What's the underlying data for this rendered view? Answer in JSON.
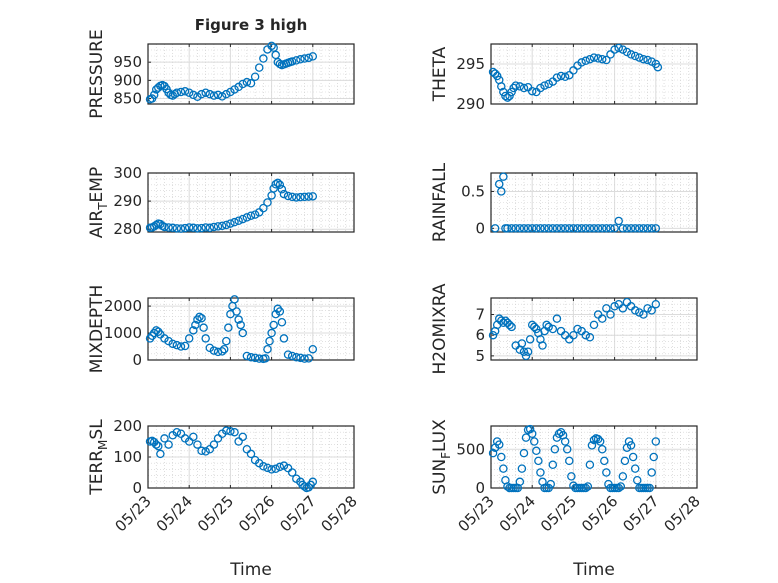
{
  "figure": {
    "title": "Figure 3 high",
    "x_ticks": [
      "05/23",
      "05/24",
      "05/25",
      "05/26",
      "05/27",
      "05/28"
    ],
    "x_label": "Time",
    "marker_color": "#0072BD",
    "axis_color": "#262626",
    "grid_color": "#dcdcdc"
  },
  "chart_data": [
    {
      "type": "scatter",
      "ylabel": "PRESSURE",
      "yticks": [
        "850",
        "900",
        "950"
      ],
      "ylim": [
        835,
        1000
      ],
      "xlim": [
        0,
        5
      ],
      "x": [
        0.05,
        0.1,
        0.15,
        0.2,
        0.25,
        0.3,
        0.35,
        0.4,
        0.45,
        0.5,
        0.55,
        0.6,
        0.65,
        0.7,
        0.8,
        0.9,
        1.0,
        1.1,
        1.2,
        1.3,
        1.4,
        1.5,
        1.6,
        1.7,
        1.8,
        1.9,
        2.0,
        2.1,
        2.2,
        2.3,
        2.4,
        2.5,
        2.6,
        2.7,
        2.8,
        2.9,
        3.0,
        3.05,
        3.1,
        3.15,
        3.2,
        3.25,
        3.3,
        3.35,
        3.4,
        3.45,
        3.5,
        3.6,
        3.7,
        3.8,
        3.9,
        4.0
      ],
      "y": [
        848,
        850,
        860,
        875,
        880,
        885,
        887,
        884,
        876,
        866,
        860,
        858,
        862,
        866,
        868,
        870,
        866,
        860,
        855,
        862,
        866,
        862,
        858,
        860,
        856,
        862,
        868,
        875,
        882,
        890,
        895,
        892,
        910,
        935,
        960,
        985,
        995,
        990,
        970,
        950,
        945,
        942,
        944,
        946,
        948,
        950,
        952,
        955,
        958,
        960,
        962,
        966
      ]
    },
    {
      "type": "scatter",
      "ylabel": "THETA",
      "yticks": [
        "290",
        "295"
      ],
      "ylim": [
        290,
        297.5
      ],
      "xlim": [
        0,
        5
      ],
      "x": [
        0.05,
        0.1,
        0.15,
        0.2,
        0.25,
        0.3,
        0.35,
        0.4,
        0.45,
        0.5,
        0.55,
        0.6,
        0.7,
        0.8,
        0.9,
        1.0,
        1.1,
        1.2,
        1.3,
        1.4,
        1.5,
        1.6,
        1.7,
        1.8,
        1.9,
        2.0,
        2.1,
        2.2,
        2.3,
        2.4,
        2.5,
        2.6,
        2.7,
        2.8,
        2.9,
        3.0,
        3.1,
        3.2,
        3.3,
        3.4,
        3.5,
        3.6,
        3.7,
        3.8,
        3.9,
        4.0,
        4.05
      ],
      "y": [
        294,
        293.8,
        293.5,
        293,
        292.2,
        291.5,
        291,
        290.8,
        291,
        291.5,
        292,
        292.3,
        292.2,
        292,
        292.1,
        291.6,
        291.5,
        292,
        292.3,
        292.5,
        292.8,
        293.3,
        293.5,
        293.4,
        293.6,
        294.2,
        294.8,
        295.2,
        295.4,
        295.6,
        295.8,
        295.7,
        295.6,
        295.5,
        296.2,
        296.8,
        297,
        296.8,
        296.5,
        296.2,
        296,
        295.8,
        295.6,
        295.5,
        295.3,
        295,
        294.6
      ]
    },
    {
      "type": "scatter",
      "ylabel": "AIR_TEMP",
      "yticks": [
        "280",
        "290",
        "300"
      ],
      "ylim": [
        279,
        300
      ],
      "xlim": [
        0,
        5
      ],
      "x": [
        0.05,
        0.1,
        0.15,
        0.2,
        0.25,
        0.3,
        0.35,
        0.4,
        0.5,
        0.6,
        0.7,
        0.8,
        0.9,
        1.0,
        1.1,
        1.2,
        1.3,
        1.4,
        1.5,
        1.6,
        1.7,
        1.8,
        1.9,
        2.0,
        2.1,
        2.2,
        2.3,
        2.4,
        2.5,
        2.6,
        2.7,
        2.8,
        2.9,
        3.0,
        3.05,
        3.1,
        3.15,
        3.2,
        3.25,
        3.3,
        3.4,
        3.5,
        3.6,
        3.7,
        3.8,
        3.9,
        4.0
      ],
      "y": [
        280.5,
        280.6,
        281,
        281.5,
        282,
        281.8,
        281.2,
        280.8,
        280.6,
        280.5,
        280.3,
        280.2,
        280.4,
        280.6,
        280.5,
        280.3,
        280.4,
        280.6,
        280.5,
        280.8,
        281,
        281.2,
        281.5,
        282,
        282.5,
        283,
        283.6,
        284.2,
        284.8,
        285.2,
        286,
        287.5,
        289.5,
        292,
        294.5,
        296,
        296.5,
        295.8,
        294.2,
        292.5,
        291.8,
        291.5,
        291.3,
        291.4,
        291.5,
        291.6,
        291.7
      ]
    },
    {
      "type": "scatter",
      "ylabel": "RAINFALL",
      "yticks": [
        "0",
        "0.5"
      ],
      "ylim": [
        -0.05,
        0.75
      ],
      "xlim": [
        0,
        5
      ],
      "x": [
        0.1,
        0.2,
        0.25,
        0.3,
        0.35,
        0.4,
        0.5,
        0.6,
        0.7,
        0.8,
        0.9,
        1.0,
        1.1,
        1.2,
        1.3,
        1.4,
        1.5,
        1.6,
        1.7,
        1.8,
        1.9,
        2.0,
        2.1,
        2.2,
        2.3,
        2.4,
        2.5,
        2.6,
        2.7,
        2.8,
        2.9,
        3.0,
        3.1,
        3.2,
        3.3,
        3.4,
        3.5,
        3.6,
        3.7,
        3.8,
        3.9,
        4.0
      ],
      "y": [
        0,
        0.6,
        0.5,
        0.7,
        0,
        0,
        0,
        0,
        0,
        0,
        0,
        0,
        0,
        0,
        0,
        0,
        0,
        0,
        0,
        0,
        0,
        0,
        0,
        0,
        0,
        0,
        0,
        0,
        0,
        0,
        0,
        0,
        0.1,
        0,
        0,
        0,
        0,
        0,
        0,
        0,
        0,
        0
      ]
    },
    {
      "type": "scatter",
      "ylabel": "MIXDEPTH",
      "yticks": [
        "0",
        "1000",
        "2000"
      ],
      "ylim": [
        0,
        2300
      ],
      "xlim": [
        0,
        5
      ],
      "x": [
        0.05,
        0.1,
        0.15,
        0.2,
        0.25,
        0.3,
        0.4,
        0.5,
        0.6,
        0.7,
        0.8,
        0.9,
        1.0,
        1.1,
        1.15,
        1.2,
        1.25,
        1.3,
        1.35,
        1.4,
        1.5,
        1.6,
        1.7,
        1.8,
        1.85,
        1.9,
        1.95,
        2.0,
        2.05,
        2.1,
        2.15,
        2.2,
        2.25,
        2.3,
        2.4,
        2.5,
        2.6,
        2.7,
        2.8,
        2.85,
        2.9,
        2.95,
        3.0,
        3.05,
        3.1,
        3.15,
        3.2,
        3.25,
        3.3,
        3.4,
        3.5,
        3.6,
        3.7,
        3.8,
        3.9,
        4.0
      ],
      "y": [
        800,
        900,
        1000,
        1100,
        1050,
        950,
        800,
        700,
        600,
        550,
        500,
        520,
        800,
        1100,
        1300,
        1500,
        1600,
        1550,
        1200,
        800,
        450,
        350,
        300,
        320,
        400,
        700,
        1200,
        1700,
        2000,
        2250,
        1800,
        1500,
        1300,
        1000,
        150,
        100,
        80,
        50,
        40,
        60,
        400,
        700,
        1000,
        1300,
        1700,
        1900,
        1800,
        1400,
        800,
        200,
        150,
        100,
        80,
        50,
        60,
        400
      ]
    },
    {
      "type": "scatter",
      "ylabel": "H2OMIXRA",
      "yticks": [
        "5",
        "6",
        "7"
      ],
      "ylim": [
        4.8,
        7.8
      ],
      "xlim": [
        0,
        5
      ],
      "x": [
        0.05,
        0.1,
        0.15,
        0.2,
        0.25,
        0.3,
        0.35,
        0.4,
        0.45,
        0.5,
        0.6,
        0.7,
        0.75,
        0.8,
        0.85,
        0.9,
        0.95,
        1.0,
        1.05,
        1.1,
        1.15,
        1.2,
        1.25,
        1.3,
        1.35,
        1.4,
        1.5,
        1.6,
        1.7,
        1.8,
        1.9,
        2.0,
        2.1,
        2.2,
        2.3,
        2.4,
        2.5,
        2.6,
        2.7,
        2.8,
        2.9,
        3.0,
        3.1,
        3.2,
        3.3,
        3.4,
        3.5,
        3.6,
        3.7,
        3.8,
        3.9,
        4.0
      ],
      "y": [
        6,
        6.2,
        6.5,
        6.8,
        6.7,
        6.6,
        6.7,
        6.6,
        6.5,
        6.4,
        5.5,
        5.3,
        5.6,
        5.2,
        5.0,
        5.2,
        5.8,
        6.5,
        6.4,
        6.3,
        6.1,
        5.8,
        5.5,
        6.2,
        6.5,
        6.4,
        6.3,
        6.8,
        6.2,
        6.0,
        5.8,
        6.0,
        6.3,
        6.2,
        6.0,
        5.9,
        6.5,
        7.0,
        6.8,
        7.3,
        7.0,
        7.4,
        7.5,
        7.3,
        7.6,
        7.4,
        7.2,
        7.1,
        7.0,
        7.3,
        7.2,
        7.5
      ]
    },
    {
      "type": "scatter",
      "ylabel": "TERR_MSL",
      "yticks": [
        "0",
        "100",
        "200"
      ],
      "ylim": [
        0,
        200
      ],
      "xlim": [
        0,
        5
      ],
      "x": [
        0.05,
        0.1,
        0.15,
        0.2,
        0.25,
        0.3,
        0.4,
        0.5,
        0.6,
        0.7,
        0.8,
        0.9,
        1.0,
        1.1,
        1.2,
        1.3,
        1.4,
        1.5,
        1.6,
        1.7,
        1.8,
        1.9,
        2.0,
        2.1,
        2.2,
        2.3,
        2.4,
        2.5,
        2.6,
        2.7,
        2.8,
        2.9,
        3.0,
        3.1,
        3.2,
        3.3,
        3.4,
        3.5,
        3.6,
        3.7,
        3.75,
        3.8,
        3.85,
        3.9,
        3.95,
        4.0
      ],
      "y": [
        150,
        152,
        148,
        140,
        135,
        110,
        160,
        140,
        170,
        180,
        175,
        160,
        150,
        165,
        140,
        120,
        118,
        125,
        140,
        160,
        175,
        185,
        183,
        180,
        150,
        165,
        125,
        110,
        90,
        80,
        70,
        65,
        60,
        62,
        68,
        72,
        64,
        50,
        30,
        20,
        10,
        5,
        0,
        2,
        10,
        20
      ]
    },
    {
      "type": "scatter",
      "ylabel": "SUN_FLUX",
      "yticks": [
        "0",
        "500"
      ],
      "ylim": [
        0,
        800
      ],
      "xlim": [
        0,
        5
      ],
      "x": [
        0.05,
        0.1,
        0.15,
        0.2,
        0.25,
        0.3,
        0.35,
        0.4,
        0.45,
        0.5,
        0.55,
        0.6,
        0.65,
        0.7,
        0.75,
        0.8,
        0.85,
        0.9,
        0.95,
        1.0,
        1.05,
        1.1,
        1.15,
        1.2,
        1.25,
        1.3,
        1.35,
        1.4,
        1.45,
        1.5,
        1.55,
        1.6,
        1.65,
        1.7,
        1.75,
        1.8,
        1.85,
        1.9,
        1.95,
        2.0,
        2.05,
        2.1,
        2.15,
        2.2,
        2.25,
        2.3,
        2.35,
        2.4,
        2.45,
        2.5,
        2.55,
        2.6,
        2.65,
        2.7,
        2.75,
        2.8,
        2.85,
        2.9,
        2.95,
        3.0,
        3.05,
        3.1,
        3.15,
        3.2,
        3.25,
        3.3,
        3.35,
        3.4,
        3.45,
        3.5,
        3.55,
        3.6,
        3.65,
        3.7,
        3.75,
        3.8,
        3.85,
        3.9,
        3.95,
        4.0
      ],
      "y": [
        450,
        520,
        600,
        560,
        400,
        250,
        100,
        20,
        0,
        0,
        0,
        0,
        0,
        80,
        250,
        450,
        650,
        750,
        760,
        700,
        600,
        480,
        350,
        200,
        80,
        0,
        0,
        0,
        50,
        300,
        500,
        650,
        700,
        720,
        680,
        600,
        500,
        350,
        150,
        30,
        0,
        0,
        0,
        0,
        0,
        0,
        20,
        300,
        550,
        620,
        640,
        630,
        600,
        500,
        350,
        200,
        50,
        0,
        0,
        0,
        0,
        0,
        20,
        150,
        350,
        520,
        600,
        550,
        400,
        250,
        100,
        0,
        0,
        0,
        0,
        0,
        0,
        200,
        400,
        600
      ]
    }
  ]
}
